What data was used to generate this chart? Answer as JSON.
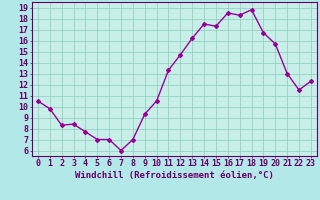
{
  "hours": [
    0,
    1,
    2,
    3,
    4,
    5,
    6,
    7,
    8,
    9,
    10,
    11,
    12,
    13,
    14,
    15,
    16,
    17,
    18,
    19,
    20,
    21,
    22,
    23
  ],
  "values": [
    10.5,
    9.8,
    8.3,
    8.4,
    7.7,
    7.0,
    7.0,
    6.0,
    7.0,
    9.3,
    10.5,
    13.3,
    14.7,
    16.2,
    17.5,
    17.3,
    18.5,
    18.3,
    18.8,
    16.7,
    15.7,
    13.0,
    11.5,
    12.3
  ],
  "line_color": "#990099",
  "marker": "D",
  "markersize": 2.0,
  "linewidth": 1.0,
  "bg_color": "#b3e8e8",
  "grid_color": "#88ccbb",
  "xlabel": "Windchill (Refroidissement éolien,°C)",
  "xlim": [
    -0.5,
    23.5
  ],
  "ylim": [
    5.5,
    19.5
  ],
  "yticks": [
    6,
    7,
    8,
    9,
    10,
    11,
    12,
    13,
    14,
    15,
    16,
    17,
    18,
    19
  ],
  "xticks": [
    0,
    1,
    2,
    3,
    4,
    5,
    6,
    7,
    8,
    9,
    10,
    11,
    12,
    13,
    14,
    15,
    16,
    17,
    18,
    19,
    20,
    21,
    22,
    23
  ],
  "xlabel_fontsize": 6.5,
  "tick_fontsize": 6.0,
  "tick_color": "#660066",
  "spine_color": "#660066",
  "axis_bg": "#c8eee8"
}
